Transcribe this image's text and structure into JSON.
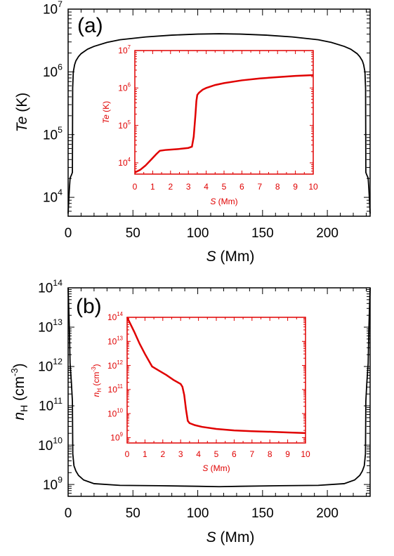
{
  "chart_data": [
    {
      "panel": "(a)",
      "type": "line",
      "xlabel_italic": "S",
      "xlabel_rest": " (Mm)",
      "ylabel_italic": "Te",
      "ylabel_rest": " (K)",
      "xlim": [
        0,
        233
      ],
      "ylim": [
        5000,
        10000000
      ],
      "yscale": "log",
      "xticks": [
        0,
        50,
        100,
        150,
        200
      ],
      "yticks": [
        {
          "base": "10",
          "exp": "4",
          "v": 10000
        },
        {
          "base": "10",
          "exp": "5",
          "v": 100000
        },
        {
          "base": "10",
          "exp": "6",
          "v": 1000000
        },
        {
          "base": "10",
          "exp": "7",
          "v": 10000000
        }
      ],
      "color": "#000000",
      "series": [
        {
          "x": [
            0,
            0.5,
            1,
            1.5,
            2,
            2.5,
            3,
            3.3,
            3.5,
            4,
            5,
            6,
            8,
            10,
            15,
            20,
            30,
            40,
            60,
            80,
            100,
            116.5,
            133,
            153,
            173,
            193,
            203,
            213,
            218,
            223,
            225,
            227,
            228,
            229,
            229.5,
            229.7,
            230,
            230.5,
            231,
            231.5,
            232,
            232.5,
            233
          ],
          "y": [
            5500,
            9000,
            14000,
            20000,
            21500,
            22500,
            24000,
            25000,
            550000,
            1000000,
            1300000,
            1500000,
            1750000,
            1950000,
            2300000,
            2550000,
            2950000,
            3250000,
            3600000,
            3850000,
            4000000,
            4050000,
            4000000,
            3850000,
            3600000,
            3250000,
            2950000,
            2550000,
            2300000,
            1950000,
            1750000,
            1500000,
            1300000,
            1000000,
            550000,
            25000,
            24000,
            22500,
            21500,
            20000,
            14000,
            9000,
            5500
          ]
        }
      ],
      "inset": {
        "type": "line",
        "xlabel_italic": "S",
        "xlabel_rest": " (Mm)",
        "ylabel_italic": "Te",
        "ylabel_rest": " (K)",
        "xlim": [
          0,
          10
        ],
        "ylim": [
          5000,
          10000000
        ],
        "yscale": "log",
        "xticks": [
          0,
          1,
          2,
          3,
          4,
          5,
          6,
          7,
          8,
          9,
          10
        ],
        "yticks": [
          {
            "base": "10",
            "exp": "4",
            "v": 10000
          },
          {
            "base": "10",
            "exp": "5",
            "v": 100000
          },
          {
            "base": "10",
            "exp": "6",
            "v": 1000000
          },
          {
            "base": "10",
            "exp": "7",
            "v": 10000000
          }
        ],
        "color": "#e00000",
        "series": [
          {
            "x": [
              0,
              0.3,
              0.6,
              0.9,
              1.2,
              1.4,
              1.7,
              2.0,
              2.5,
              3.0,
              3.2,
              3.3,
              3.4,
              3.45,
              3.5,
              3.6,
              3.8,
              4.0,
              4.5,
              5,
              6,
              7,
              8,
              9,
              10
            ],
            "y": [
              5500,
              6500,
              8500,
              12000,
              17000,
              21000,
              22000,
              22500,
              23500,
              25000,
              27000,
              50000,
              200000,
              450000,
              650000,
              750000,
              900000,
              1000000,
              1200000,
              1350000,
              1600000,
              1800000,
              1950000,
              2100000,
              2200000
            ]
          }
        ]
      }
    },
    {
      "panel": "(b)",
      "type": "line",
      "xlabel_italic": "S",
      "xlabel_rest": " (Mm)",
      "ylabel_italic": "n",
      "ylabel_sub": "H",
      "ylabel_rest": " (cm",
      "ylabel_sup": "-3",
      "ylabel_close": ")",
      "xlim": [
        0,
        233
      ],
      "ylim": [
        500000000,
        100000000000000
      ],
      "yscale": "log",
      "xticks": [
        0,
        50,
        100,
        150,
        200
      ],
      "yticks": [
        {
          "base": "10",
          "exp": "9",
          "v": 1000000000.0
        },
        {
          "base": "10",
          "exp": "10",
          "v": 10000000000.0
        },
        {
          "base": "10",
          "exp": "11",
          "v": 100000000000.0
        },
        {
          "base": "10",
          "exp": "12",
          "v": 1000000000000.0
        },
        {
          "base": "10",
          "exp": "13",
          "v": 10000000000000.0
        },
        {
          "base": "10",
          "exp": "14",
          "v": 100000000000000.0
        }
      ],
      "color": "#000000",
      "series": [
        {
          "x": [
            0,
            0.5,
            1,
            1.5,
            2,
            2.5,
            3,
            3.3,
            3.6,
            4.5,
            6,
            8,
            12,
            20,
            40,
            70,
            100,
            116.5,
            133,
            163,
            193,
            213,
            221,
            225,
            227,
            228.5,
            229.4,
            229.7,
            230,
            230.5,
            231,
            231.5,
            232,
            232.5,
            233
          ],
          "y": [
            100000000000000.0,
            30000000000000.0,
            8000000000000.0,
            1200000000000.0,
            700000000000.0,
            400000000000.0,
            200000000000.0,
            130000000000.0,
            6000000000.0,
            3000000000.0,
            2200000000.0,
            1700000000.0,
            1300000000.0,
            1050000000.0,
            950000000.0,
            930000000.0,
            900000000.0,
            880000000.0,
            900000000.0,
            930000000.0,
            950000000.0,
            1050000000.0,
            1300000000.0,
            1700000000.0,
            2200000000.0,
            3000000000.0,
            6000000000.0,
            130000000000.0,
            200000000000.0,
            400000000000.0,
            700000000000.0,
            1200000000000.0,
            8000000000000.0,
            30000000000000.0,
            100000000000000.0
          ]
        }
      ],
      "inset": {
        "type": "line",
        "xlabel_italic": "S",
        "xlabel_rest": " (Mm)",
        "ylabel_italic": "n",
        "ylabel_sub": "H",
        "ylabel_rest": " (cm",
        "ylabel_sup": "-3",
        "ylabel_close": ")",
        "xlim": [
          0,
          10
        ],
        "ylim": [
          600000000,
          100000000000000
        ],
        "yscale": "log",
        "xticks": [
          0,
          1,
          2,
          3,
          4,
          5,
          6,
          7,
          8,
          9,
          10
        ],
        "yticks": [
          {
            "base": "10",
            "exp": "9",
            "v": 1000000000.0
          },
          {
            "base": "10",
            "exp": "10",
            "v": 10000000000.0
          },
          {
            "base": "10",
            "exp": "11",
            "v": 100000000000.0
          },
          {
            "base": "10",
            "exp": "12",
            "v": 1000000000000.0
          },
          {
            "base": "10",
            "exp": "13",
            "v": 10000000000000.0
          },
          {
            "base": "10",
            "exp": "14",
            "v": 100000000000000.0
          }
        ],
        "color": "#e00000",
        "series": [
          {
            "x": [
              0,
              0.2,
              0.4,
              0.7,
              1.0,
              1.4,
              1.8,
              2.2,
              2.6,
              3.0,
              3.1,
              3.2,
              3.3,
              3.4,
              3.5,
              3.8,
              4.2,
              5,
              6,
              7,
              8,
              9,
              10
            ],
            "y": [
              100000000000000.0,
              50000000000000.0,
              25000000000000.0,
              8000000000000.0,
              3000000000000.0,
              900000000000.0,
              600000000000.0,
              400000000000.0,
              250000000000.0,
              170000000000.0,
              130000000000.0,
              60000000000.0,
              15000000000.0,
              5000000000.0,
              4000000000.0,
              3300000000.0,
              2800000000.0,
              2300000000.0,
              2000000000.0,
              1850000000.0,
              1750000000.0,
              1650000000.0,
              1550000000.0
            ]
          }
        ]
      }
    }
  ]
}
